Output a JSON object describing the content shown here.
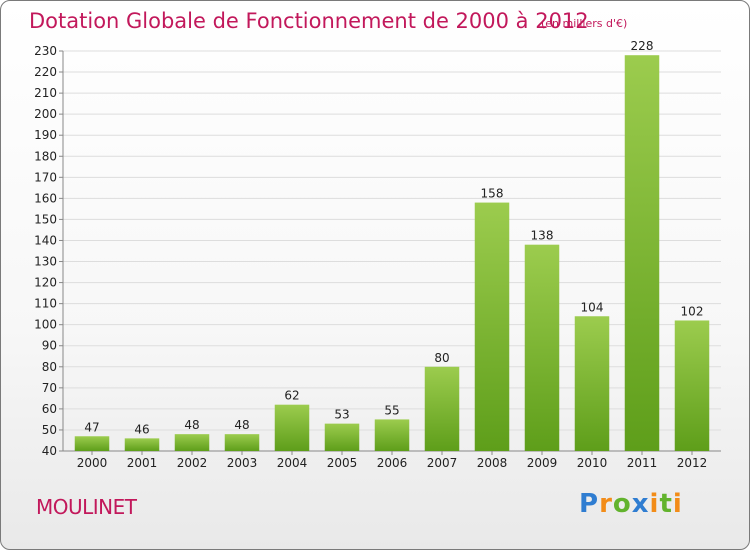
{
  "title": "Dotation Globale de Fonctionnement de 2000 à 2012",
  "subtitle": "(en milliers d'€)",
  "commune": "MOULINET",
  "logo": {
    "letters": [
      "P",
      "r",
      "o",
      "x",
      "i",
      "t",
      "i"
    ]
  },
  "colors": {
    "title": "#c2185b",
    "bar_top": "#9ccc4e",
    "bar_bottom": "#5e9e1a",
    "grid": "#dddddd"
  },
  "chart_data": {
    "type": "bar",
    "title": "Dotation Globale de Fonctionnement de 2000 à 2012",
    "subtitle": "(en milliers d'€)",
    "xlabel": "",
    "ylabel": "",
    "categories": [
      "2000",
      "2001",
      "2002",
      "2003",
      "2004",
      "2005",
      "2006",
      "2007",
      "2008",
      "2009",
      "2010",
      "2011",
      "2012"
    ],
    "values": [
      47,
      46,
      48,
      48,
      62,
      53,
      55,
      80,
      158,
      138,
      104,
      228,
      102
    ],
    "ylim": [
      40,
      230
    ],
    "yticks": [
      40,
      50,
      60,
      70,
      80,
      90,
      100,
      110,
      120,
      130,
      140,
      150,
      160,
      170,
      180,
      190,
      200,
      210,
      220,
      230
    ],
    "grid": "horizontal",
    "legend": "none"
  }
}
